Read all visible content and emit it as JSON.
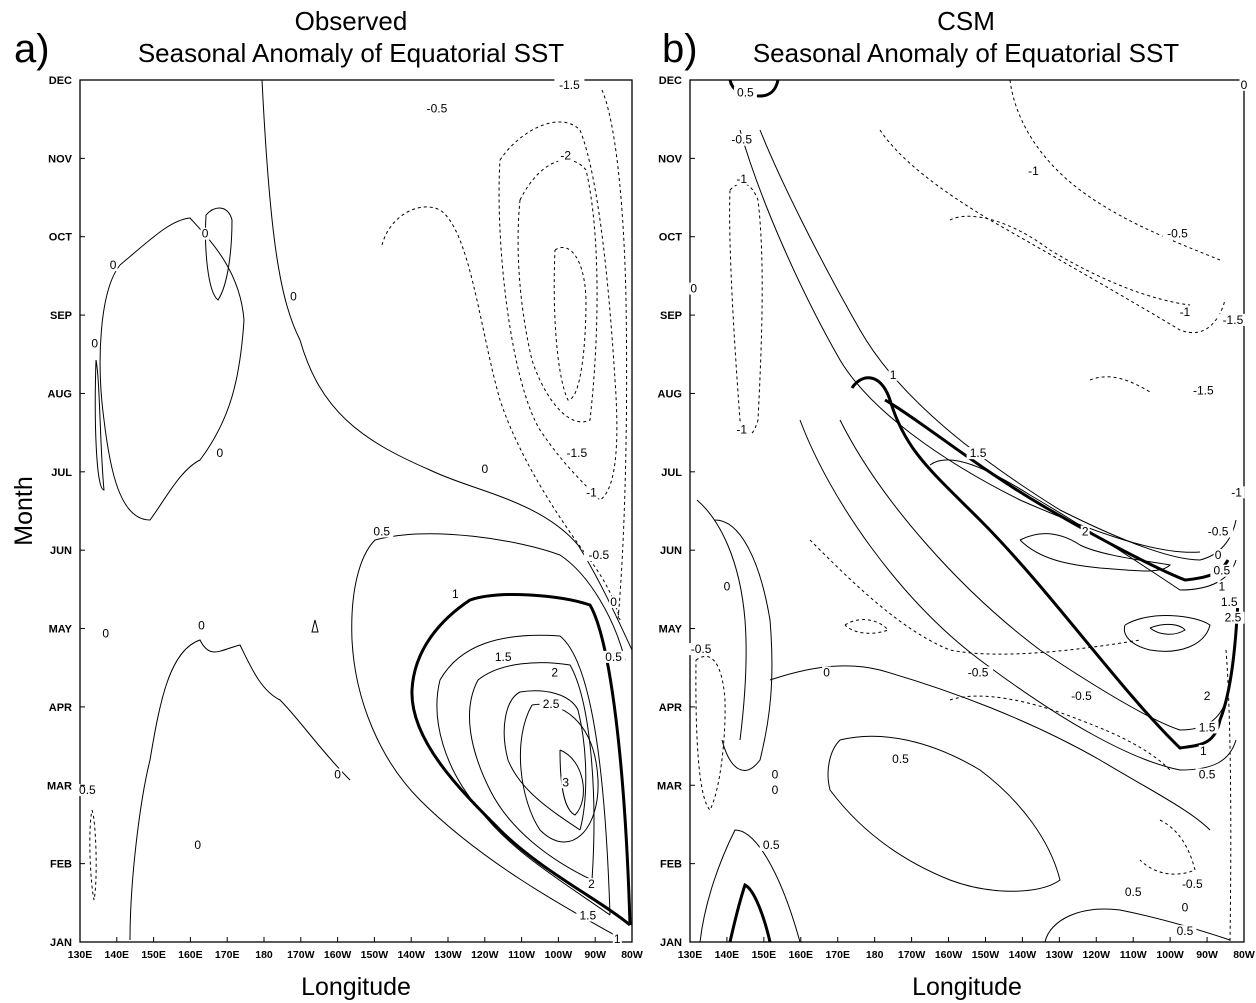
{
  "chart_data": [
    {
      "type": "contour",
      "panel": "a)",
      "title": "Observed",
      "subtitle": "Seasonal Anomaly of Equatorial SST",
      "xlabel": "Longitude",
      "ylabel": "Month",
      "x_ticks": [
        "130E",
        "140E",
        "150E",
        "160E",
        "170E",
        "180",
        "170W",
        "160W",
        "150W",
        "140W",
        "130W",
        "120W",
        "110W",
        "100W",
        "90W",
        "80W"
      ],
      "y_ticks": [
        "JAN",
        "FEB",
        "MAR",
        "APR",
        "MAY",
        "JUN",
        "JUL",
        "AUG",
        "SEP",
        "OCT",
        "NOV",
        "DEC"
      ],
      "contour_labels": [
        {
          "text": "-0.5",
          "lon": 227,
          "month": 10.6
        },
        {
          "text": "-1.5",
          "lon": 263,
          "month": 10.9
        },
        {
          "text": "-2",
          "lon": 262,
          "month": 10.0
        },
        {
          "text": "-1.5",
          "lon": 265,
          "month": 6.2
        },
        {
          "text": "-1",
          "lon": 269,
          "month": 5.7
        },
        {
          "text": "-0.5",
          "lon": 271,
          "month": 4.9
        },
        {
          "text": "0",
          "lon": 275,
          "month": 4.3
        },
        {
          "text": "0.5",
          "lon": 275,
          "month": 3.6
        },
        {
          "text": "0",
          "lon": 240,
          "month": 6.0
        },
        {
          "text": "0",
          "lon": 188,
          "month": 8.2
        },
        {
          "text": "0",
          "lon": 164,
          "month": 9.0
        },
        {
          "text": "0",
          "lon": 168,
          "month": 6.2
        },
        {
          "text": "0",
          "lon": 139,
          "month": 8.6
        },
        {
          "text": "0",
          "lon": 134,
          "month": 7.6
        },
        {
          "text": "0",
          "lon": 137,
          "month": 3.9
        },
        {
          "text": "0",
          "lon": 163,
          "month": 4.0
        },
        {
          "text": "0",
          "lon": 200,
          "month": 2.1
        },
        {
          "text": "0",
          "lon": 162,
          "month": 1.2
        },
        {
          "text": "0.5",
          "lon": 212,
          "month": 5.2
        },
        {
          "text": "1",
          "lon": 232,
          "month": 4.4
        },
        {
          "text": "1.5",
          "lon": 245,
          "month": 3.6
        },
        {
          "text": "2",
          "lon": 259,
          "month": 3.4
        },
        {
          "text": "2.5",
          "lon": 258,
          "month": 3.0
        },
        {
          "text": "3",
          "lon": 262,
          "month": 2.0
        },
        {
          "text": "2",
          "lon": 269,
          "month": 0.7
        },
        {
          "text": "1.5",
          "lon": 268,
          "month": 0.3
        },
        {
          "text": "1",
          "lon": 276,
          "month": 0.0
        },
        {
          "text": "0.5",
          "lon": 132,
          "month": 1.9
        }
      ]
    },
    {
      "type": "contour",
      "panel": "b)",
      "title": "CSM",
      "subtitle": "Seasonal Anomaly of Equatorial SST",
      "xlabel": "Longitude",
      "ylabel": "Month",
      "x_ticks": [
        "130E",
        "140E",
        "150E",
        "160E",
        "170E",
        "180",
        "170W",
        "160W",
        "150W",
        "140W",
        "130W",
        "120W",
        "110W",
        "100W",
        "90W",
        "80W"
      ],
      "y_ticks": [
        "JAN",
        "FEB",
        "MAR",
        "APR",
        "MAY",
        "JUN",
        "JUL",
        "AUG",
        "SEP",
        "OCT",
        "NOV",
        "DEC"
      ],
      "contour_labels": [
        {
          "text": "0.5",
          "lon": 145,
          "month": 10.8
        },
        {
          "text": "-0.5",
          "lon": 144,
          "month": 10.2
        },
        {
          "text": "-1",
          "lon": 144,
          "month": 9.7
        },
        {
          "text": "-1",
          "lon": 144,
          "month": 6.5
        },
        {
          "text": "0",
          "lon": 131,
          "month": 8.3
        },
        {
          "text": "-1",
          "lon": 223,
          "month": 9.8
        },
        {
          "text": "-0.5",
          "lon": 262,
          "month": 9.0
        },
        {
          "text": "-1",
          "lon": 264,
          "month": 8.0
        },
        {
          "text": "-1.5",
          "lon": 277,
          "month": 7.9
        },
        {
          "text": "-1.5",
          "lon": 269,
          "month": 7.0
        },
        {
          "text": "0",
          "lon": 280,
          "month": 10.9
        },
        {
          "text": "1",
          "lon": 185,
          "month": 7.2
        },
        {
          "text": "1.5",
          "lon": 208,
          "month": 6.2
        },
        {
          "text": "2",
          "lon": 237,
          "month": 5.2
        },
        {
          "text": "-1",
          "lon": 278,
          "month": 5.7
        },
        {
          "text": "-0.5",
          "lon": 273,
          "month": 5.2
        },
        {
          "text": "0",
          "lon": 273,
          "month": 4.9
        },
        {
          "text": "0.5",
          "lon": 274,
          "month": 4.7
        },
        {
          "text": "1",
          "lon": 274,
          "month": 4.5
        },
        {
          "text": "1.5",
          "lon": 276,
          "month": 4.3
        },
        {
          "text": "2.5",
          "lon": 277,
          "month": 4.1
        },
        {
          "text": "2",
          "lon": 270,
          "month": 3.1
        },
        {
          "text": "1.5",
          "lon": 270,
          "month": 2.7
        },
        {
          "text": "1",
          "lon": 269,
          "month": 2.4
        },
        {
          "text": "0.5",
          "lon": 270,
          "month": 2.1
        },
        {
          "text": "0",
          "lon": 140,
          "month": 4.5
        },
        {
          "text": "-0.5",
          "lon": 133,
          "month": 3.7
        },
        {
          "text": "0",
          "lon": 167,
          "month": 3.4
        },
        {
          "text": "-0.5",
          "lon": 208,
          "month": 3.4
        },
        {
          "text": "-0.5",
          "lon": 236,
          "month": 3.1
        },
        {
          "text": "0.5",
          "lon": 187,
          "month": 2.3
        },
        {
          "text": "0",
          "lon": 153,
          "month": 2.1
        },
        {
          "text": "0",
          "lon": 153,
          "month": 1.9
        },
        {
          "text": "0.5",
          "lon": 152,
          "month": 1.2
        },
        {
          "text": "0.5",
          "lon": 250,
          "month": 0.6
        },
        {
          "text": "-0.5",
          "lon": 266,
          "month": 0.7
        },
        {
          "text": "0",
          "lon": 264,
          "month": 0.4
        },
        {
          "text": "0.5",
          "lon": 264,
          "month": 0.1
        }
      ]
    }
  ]
}
